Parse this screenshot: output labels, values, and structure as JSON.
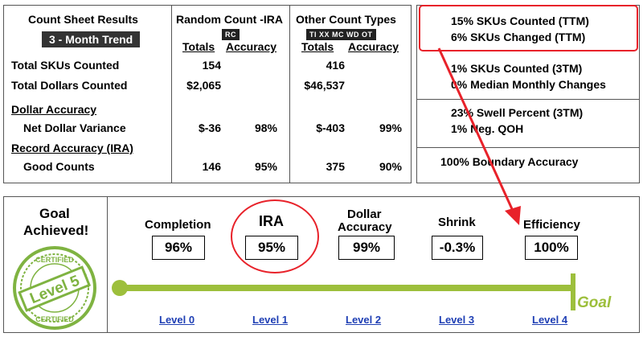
{
  "summary": {
    "title": "Count Sheet Results",
    "trend_label": "3 - Month Trend",
    "random_header": "Random Count -IRA",
    "random_tag": "RC",
    "other_header": "Other Count Types",
    "other_tag": "TI XX MC WD OT",
    "col_totals": "Totals",
    "col_accuracy": "Accuracy",
    "rows": {
      "skus_label": "Total SKUs Counted",
      "skus_rc_total": "154",
      "skus_ot_total": "416",
      "dollars_label": "Total Dollars Counted",
      "dollars_rc_total": "$2,065",
      "dollars_ot_total": "$46,537",
      "dollar_accuracy_label": "Dollar Accuracy",
      "net_variance_label": "Net Dollar Variance",
      "net_variance_rc_total": "$-36",
      "net_variance_rc_acc": "98%",
      "net_variance_ot_total": "$-403",
      "net_variance_ot_acc": "99%",
      "record_accuracy_label": "Record Accuracy (IRA)",
      "good_counts_label": "Good Counts",
      "good_counts_rc_total": "146",
      "good_counts_rc_acc": "95%",
      "good_counts_ot_total": "375",
      "good_counts_ot_acc": "90%"
    }
  },
  "stats": {
    "line1": "15% SKUs Counted (TTM)",
    "line2": "6% SKUs Changed (TTM)",
    "line3": "1% SKUs Counted (3TM)",
    "line4": "0% Median Monthly Changes",
    "line5": "23% Swell Percent (3TM)",
    "line6": "1% Neg. QOH",
    "line7": "100% Boundary Accuracy"
  },
  "goal": {
    "title_line1": "Goal",
    "title_line2": "Achieved!",
    "badge_top": "CERTIFIED",
    "badge_main": "Level 5",
    "badge_bottom": "CERTIFIED",
    "goal_label": "Goal"
  },
  "metrics": {
    "completion_label": "Completion",
    "completion_value": "96%",
    "ira_label": "IRA",
    "ira_value": "95%",
    "dollar_label_1": "Dollar",
    "dollar_label_2": "Accuracy",
    "dollar_value": "99%",
    "shrink_label": "Shrink",
    "shrink_value": "-0.3%",
    "efficiency_label": "Efficiency",
    "efficiency_value": "100%"
  },
  "levels": [
    "Level 0",
    "Level 1",
    "Level 2",
    "Level 3",
    "Level 4"
  ],
  "colors": {
    "accent_red": "#e8222a",
    "progress_green": "#9dbf3c",
    "link_blue": "#1f3fb4",
    "badge_green": "#7fb341"
  }
}
